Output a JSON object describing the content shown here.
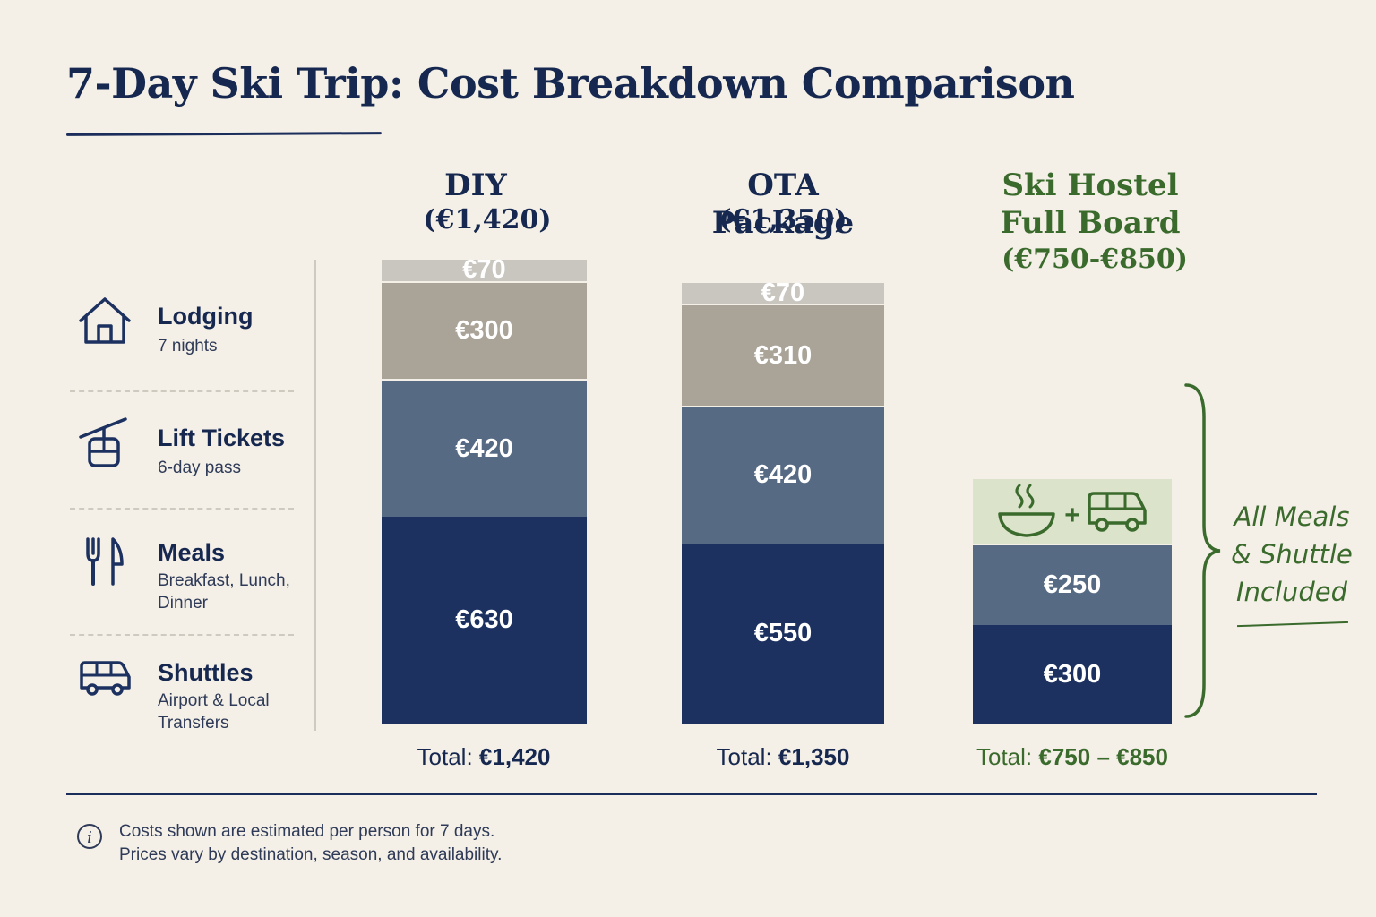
{
  "title": "7-Day Ski Trip: Cost Breakdown Comparison",
  "legend": [
    {
      "label": "Lodging",
      "sub": "7 nights",
      "icon": "house-icon"
    },
    {
      "label": "Lift Tickets",
      "sub": "6-day pass",
      "icon": "gondola-icon"
    },
    {
      "label": "Meals",
      "sub": "Breakfast, Lunch, Dinner",
      "icon": "fork-knife-icon"
    },
    {
      "label": "Shuttles",
      "sub": "Airport & Local Transfers",
      "icon": "van-icon"
    }
  ],
  "chart_data": {
    "type": "bar",
    "stacked": true,
    "categories": [
      "DIY",
      "OTA Package",
      "Ski Hostel Full Board"
    ],
    "columns": [
      {
        "title": "DIY",
        "price": "(€1,420)",
        "total_label": "Total:",
        "total_value": "€1,420",
        "segments": [
          {
            "series": "Lodging",
            "value": 630,
            "label": "€630"
          },
          {
            "series": "Lift Tickets",
            "value": 420,
            "label": "€420"
          },
          {
            "series": "Meals",
            "value": 300,
            "label": "€300"
          },
          {
            "series": "Shuttles",
            "value": 70,
            "label": "€70"
          }
        ]
      },
      {
        "title": "OTA Package",
        "price": "(€1,350)",
        "total_label": "Total:",
        "total_value": "€1,350",
        "segments": [
          {
            "series": "Lodging",
            "value": 550,
            "label": "€550"
          },
          {
            "series": "Lift Tickets",
            "value": 420,
            "label": "€420"
          },
          {
            "series": "Meals",
            "value": 310,
            "label": "€310"
          },
          {
            "series": "Shuttles",
            "value": 70,
            "label": "€70"
          }
        ]
      },
      {
        "title_line1": "Ski Hostel",
        "title_line2": "Full Board",
        "price": "(€750-€850)",
        "total_label": "Total:",
        "total_value": "€750 – €850",
        "segments": [
          {
            "series": "Lodging",
            "value": 300,
            "label": "€300"
          },
          {
            "series": "Lift Tickets",
            "value": 250,
            "label": "€250"
          },
          {
            "series": "Meals & Shuttle",
            "value": 200,
            "label": ""
          }
        ]
      }
    ],
    "colors": {
      "Lodging": "#1c3160",
      "Lift Tickets": "#576a84",
      "Meals": "#aaa398",
      "Shuttles": "#c9c6c0",
      "Meals & Shuttle": "#dbe3cb",
      "accent_green": "#3a6a2c"
    },
    "annotation": "All Meals & Shuttle Included"
  },
  "footnote": {
    "line1": "Costs shown are estimated per person for 7 days.",
    "line2": "Prices vary by destination, season, and availability."
  }
}
